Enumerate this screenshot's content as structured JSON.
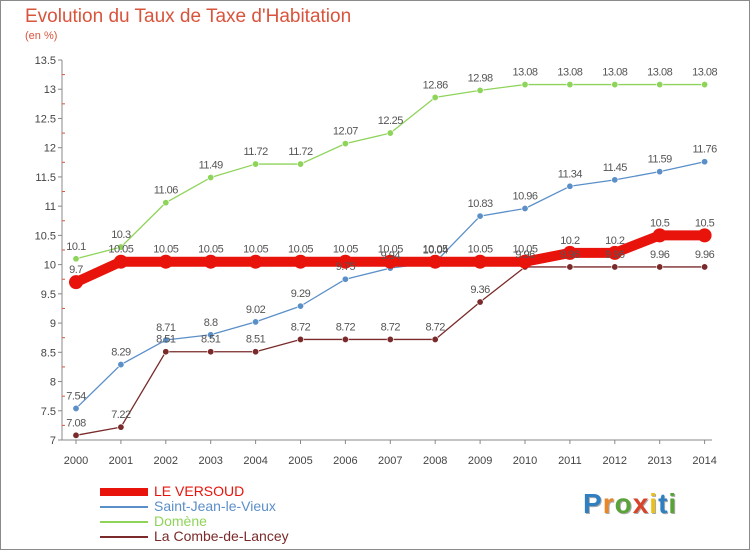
{
  "title": "Evolution du Taux de Taxe d'Habitation",
  "subtitle": "(en %)",
  "logo": {
    "text": "Proxiti",
    "letter_colors": [
      "#2f7fc1",
      "#e8862a",
      "#5aa33a",
      "#d8432a",
      "#e8c21a",
      "#2f7fc1",
      "#5aa33a"
    ]
  },
  "chart_data": {
    "type": "line",
    "x": [
      "2000",
      "2001",
      "2002",
      "2003",
      "2004",
      "2005",
      "2006",
      "2007",
      "2008",
      "2009",
      "2010",
      "2011",
      "2012",
      "2013",
      "2014"
    ],
    "ylim": [
      7,
      13.5
    ],
    "yticks": [
      "7",
      "7.5",
      "8",
      "8.5",
      "9",
      "9.5",
      "10",
      "10.5",
      "11",
      "11.5",
      "12",
      "12.5",
      "13",
      "13.5"
    ],
    "grid": false,
    "legend_position": "bottom-left",
    "series": [
      {
        "name": "LE VERSOUD",
        "color": "#e8140c",
        "values": [
          9.7,
          10.05,
          10.05,
          10.05,
          10.05,
          10.05,
          10.05,
          10.05,
          10.05,
          10.05,
          10.05,
          10.2,
          10.2,
          10.5,
          10.5
        ],
        "labels": [
          "9.7",
          "10.05",
          "10.05",
          "10.05",
          "10.05",
          "10.05",
          "10.05",
          "10.05",
          "10.05",
          "10.05",
          "10.05",
          "10.2",
          "10.2",
          "10.5",
          "10.5"
        ]
      },
      {
        "name": "Saint-Jean-le-Vieux",
        "color": "#5b8fc8",
        "values": [
          7.54,
          8.29,
          8.71,
          8.8,
          9.02,
          9.29,
          9.75,
          9.94,
          10.04,
          10.83,
          10.96,
          11.34,
          11.45,
          11.59,
          11.76
        ],
        "labels": [
          "7.54",
          "8.29",
          "8.71",
          "8.8",
          "9.02",
          "9.29",
          "9.75",
          "9.94",
          "10.04",
          "10.83",
          "10.96",
          "11.34",
          "11.45",
          "11.59",
          "11.76"
        ]
      },
      {
        "name": "Domène",
        "color": "#8fd45a",
        "values": [
          10.1,
          10.3,
          11.06,
          11.49,
          11.72,
          11.72,
          12.07,
          12.25,
          12.86,
          12.98,
          13.08,
          13.08,
          13.08,
          13.08,
          13.08
        ],
        "labels": [
          "10.1",
          "10.3",
          "11.06",
          "11.49",
          "11.72",
          "11.72",
          "12.07",
          "12.25",
          "12.86",
          "12.98",
          "13.08",
          "13.08",
          "13.08",
          "13.08",
          "13.08"
        ]
      },
      {
        "name": "La Combe-de-Lancey",
        "color": "#7a2a2a",
        "values": [
          7.08,
          7.22,
          8.51,
          8.51,
          8.51,
          8.72,
          8.72,
          8.72,
          8.72,
          9.36,
          9.96,
          9.96,
          9.96,
          9.96,
          9.96
        ],
        "labels": [
          "7.08",
          "7.22",
          "8.51",
          "8.51",
          "8.51",
          "8.72",
          "8.72",
          "8.72",
          "8.72",
          "9.36",
          "9.96",
          "9.96",
          "9.96",
          "9.96",
          "9.96"
        ]
      }
    ]
  }
}
